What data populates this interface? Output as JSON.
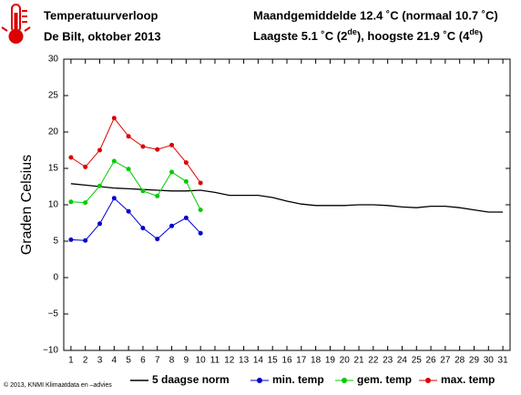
{
  "chart_data": {
    "type": "line",
    "title": "Temperatuurverloop",
    "subtitle": "De Bilt, oktober 2013",
    "summary": [
      "Maandgemiddelde 12.4 ˚C (normaal 10.7 ˚C)"
    ],
    "extremes": [
      "Laagste 5.1 ˚C (2",
      "de",
      "), hoogste 21.9 ˚C (4",
      "de",
      ")"
    ],
    "ylabel": "Graden Celsius",
    "footer": "© 2013, KNMI Klimaatdata en –advies",
    "x": [
      1,
      2,
      3,
      4,
      5,
      6,
      7,
      8,
      9,
      10,
      11,
      12,
      13,
      14,
      15,
      16,
      17,
      18,
      19,
      20,
      21,
      22,
      23,
      24,
      25,
      26,
      27,
      28,
      29,
      30,
      31
    ],
    "xlim": [
      0.5,
      31.5
    ],
    "xticks": [
      1,
      2,
      3,
      4,
      5,
      6,
      7,
      8,
      9,
      10,
      11,
      12,
      13,
      14,
      15,
      16,
      17,
      18,
      19,
      20,
      21,
      22,
      23,
      24,
      25,
      26,
      27,
      28,
      29,
      30,
      31
    ],
    "ylim": [
      -10,
      30
    ],
    "yticks": [
      {
        "value": -10,
        "label": "−10"
      },
      {
        "value": -5,
        "label": "−5"
      },
      0,
      5,
      10,
      15,
      20,
      25,
      30
    ],
    "series": [
      {
        "name": "5 daagse norm",
        "color": "#000000",
        "markers": false,
        "values": [
          12.9,
          12.7,
          12.5,
          12.3,
          12.2,
          12.1,
          12.0,
          11.9,
          11.9,
          12.0,
          11.7,
          11.3,
          11.3,
          11.3,
          11.0,
          10.5,
          10.1,
          9.9,
          9.9,
          9.9,
          10.0,
          10.0,
          9.9,
          9.7,
          9.6,
          9.8,
          9.8,
          9.6,
          9.3,
          9.0,
          9.0
        ]
      },
      {
        "name": "min. temp",
        "color": "#0000cc",
        "markers": true,
        "values": [
          5.2,
          5.1,
          7.4,
          10.9,
          9.1,
          6.8,
          5.3,
          7.1,
          8.2,
          6.1,
          null,
          null,
          null,
          null,
          null,
          null,
          null,
          null,
          null,
          null,
          null,
          null,
          null,
          null,
          null,
          null,
          null,
          null,
          null,
          null,
          null
        ]
      },
      {
        "name": "gem. temp",
        "color": "#00cc00",
        "markers": true,
        "values": [
          10.4,
          10.3,
          12.6,
          16.0,
          14.9,
          11.9,
          11.2,
          14.5,
          13.2,
          9.3,
          null,
          null,
          null,
          null,
          null,
          null,
          null,
          null,
          null,
          null,
          null,
          null,
          null,
          null,
          null,
          null,
          null,
          null,
          null,
          null,
          null
        ]
      },
      {
        "name": "max. temp",
        "color": "#dd0000",
        "markers": true,
        "values": [
          16.5,
          15.2,
          17.5,
          21.9,
          19.4,
          18.0,
          17.6,
          18.2,
          15.8,
          13.0,
          null,
          null,
          null,
          null,
          null,
          null,
          null,
          null,
          null,
          null,
          null,
          null,
          null,
          null,
          null,
          null,
          null,
          null,
          null,
          null,
          null
        ]
      }
    ]
  }
}
